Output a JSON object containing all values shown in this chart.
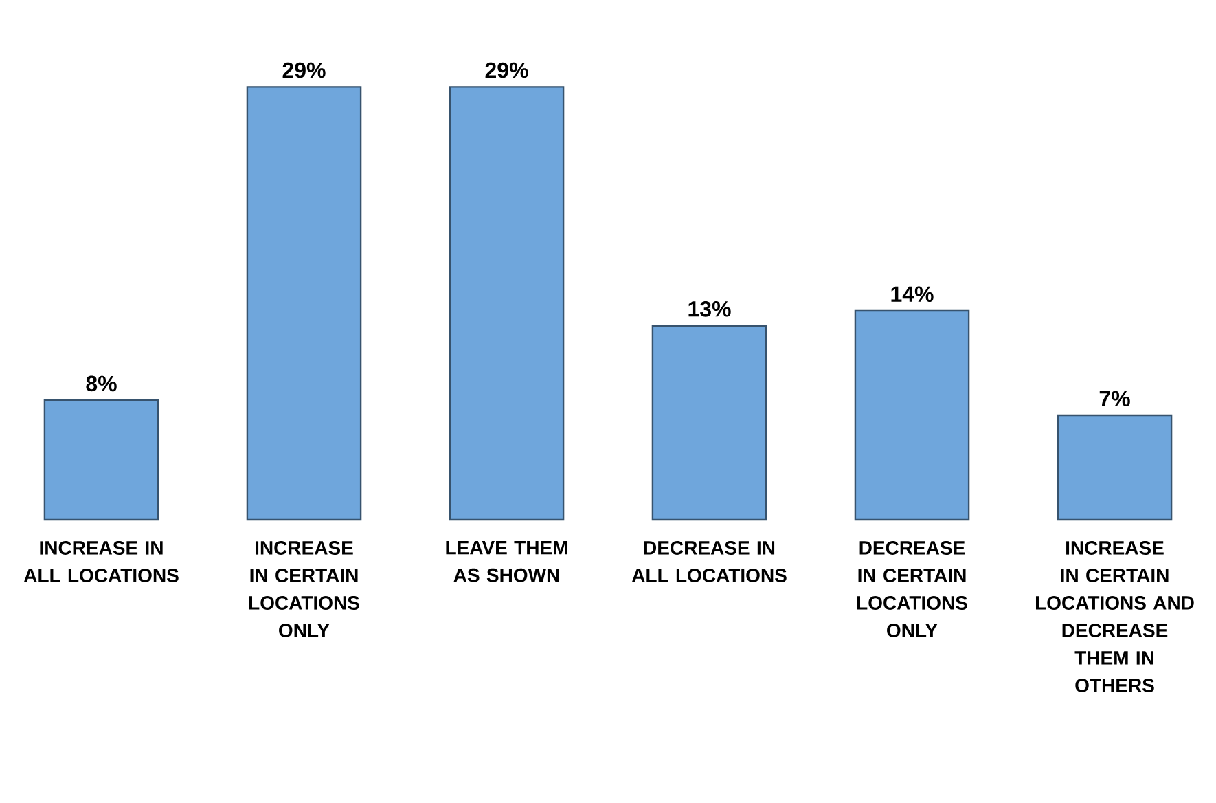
{
  "chart_data": {
    "type": "bar",
    "categories": [
      "INCREASE IN ALL LOCATIONS",
      "INCREASE IN CERTAIN LOCATIONS ONLY",
      "LEAVE THEM AS SHOWN",
      "DECREASE IN ALL LOCATIONS",
      "DECREASE IN CERTAIN LOCATIONS ONLY",
      "INCREASE IN CERTAIN LOCATIONS AND DECREASE THEM IN OTHERS"
    ],
    "values": [
      8,
      29,
      29,
      13,
      14,
      7
    ],
    "value_labels": [
      "8%",
      "29%",
      "29%",
      "13%",
      "14%",
      "7%"
    ],
    "color": "#6fa6dc"
  }
}
